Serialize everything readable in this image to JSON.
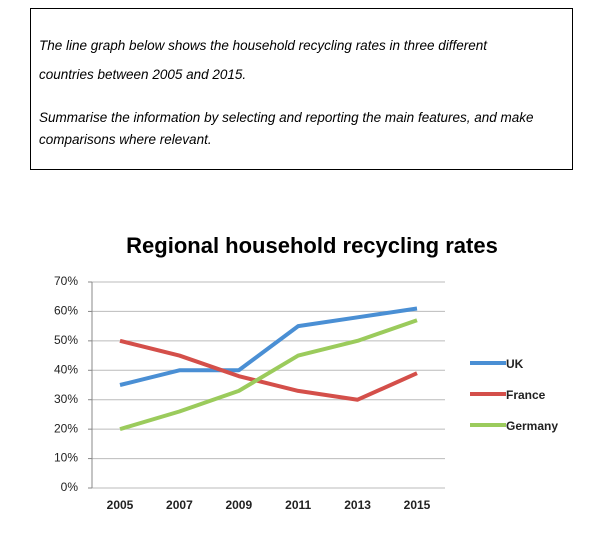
{
  "prompt": {
    "paragraphs": [
      [
        "The line graph below shows the household recycling rates in three different",
        "countries between 2005 and 2015."
      ],
      [
        "Summarise the information by selecting and reporting the main features, and make",
        "comparisons where relevant."
      ]
    ]
  },
  "chart_data": {
    "type": "line",
    "title": "Regional household recycling rates",
    "categories": [
      "2005",
      "2007",
      "2009",
      "2011",
      "2013",
      "2015"
    ],
    "series": [
      {
        "name": "UK",
        "color": "#4a8fd4",
        "values": [
          35,
          40,
          40,
          55,
          58,
          61
        ]
      },
      {
        "name": "France",
        "color": "#d44f4a",
        "values": [
          50,
          45,
          38,
          33,
          30,
          39
        ]
      },
      {
        "name": "Germany",
        "color": "#9bcb5c",
        "values": [
          20,
          26,
          33,
          45,
          50,
          57
        ]
      }
    ],
    "ylim": [
      0,
      70
    ],
    "yticks": [
      {
        "value": 0,
        "label": "0%"
      },
      {
        "value": 10,
        "label": "10%"
      },
      {
        "value": 20,
        "label": "20%"
      },
      {
        "value": 30,
        "label": "30%"
      },
      {
        "value": 40,
        "label": "40%"
      },
      {
        "value": 50,
        "label": "50%"
      },
      {
        "value": 60,
        "label": "60%"
      },
      {
        "value": 70,
        "label": "70%"
      }
    ],
    "grid": true,
    "legend": "right"
  }
}
